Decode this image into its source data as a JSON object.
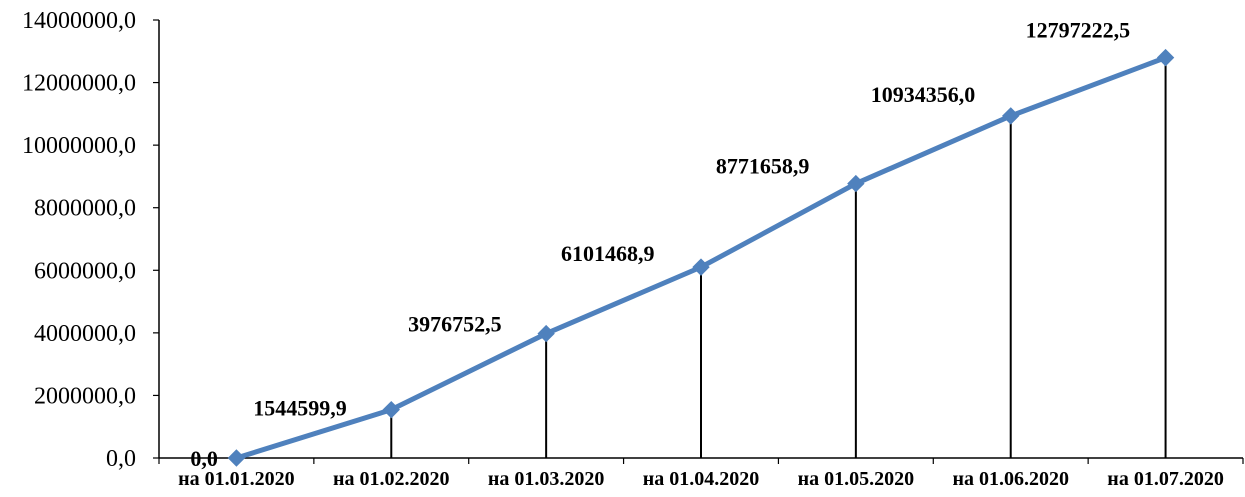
{
  "chart_data": {
    "type": "line",
    "categories": [
      "на 01.01.2020",
      "на 01.02.2020",
      "на 01.03.2020",
      "на 01.04.2020",
      "на 01.05.2020",
      "на 01.06.2020",
      "на 01.07.2020"
    ],
    "values": [
      0.0,
      1544599.9,
      3976752.5,
      6101468.9,
      8771658.9,
      10934356.0,
      12797222.5
    ],
    "data_labels": [
      "0,0",
      "1544599,9",
      "3976752,5",
      "6101468,9",
      "8771658,9",
      "10934356,0",
      "12797222,5"
    ],
    "y_tick_labels": [
      "0,0",
      "2000000,0",
      "4000000,0",
      "6000000,0",
      "8000000,0",
      "10000000,0",
      "12000000,0",
      "14000000,0"
    ],
    "ylim": [
      0,
      14000000
    ],
    "title": "",
    "xlabel": "",
    "ylabel": "",
    "grid": false,
    "drop_lines": true,
    "legend": "none",
    "line_color": "#4F81BD",
    "marker": "diamond"
  }
}
